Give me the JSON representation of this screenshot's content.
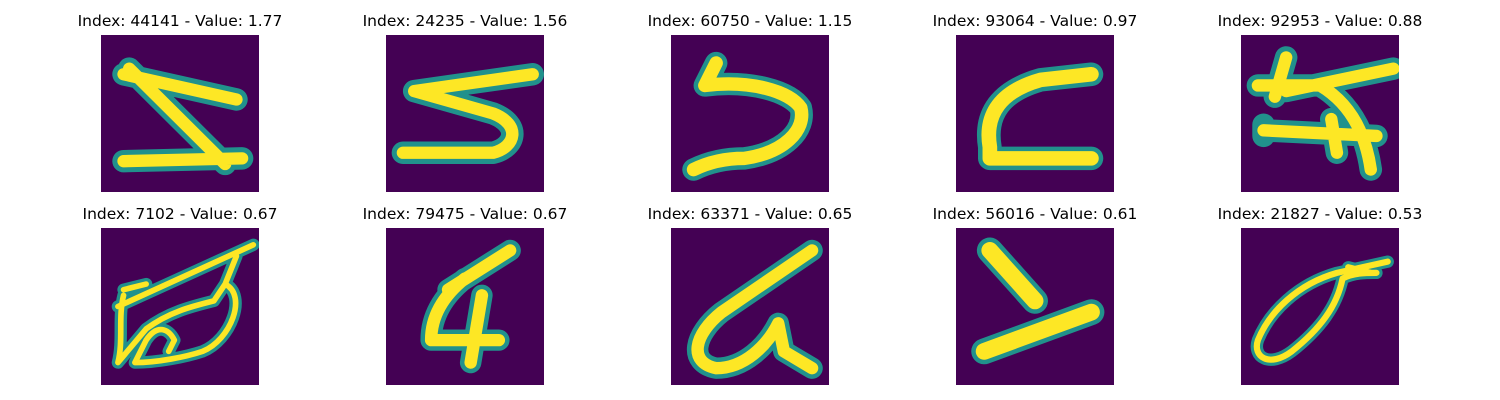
{
  "colors": {
    "background": "#440154",
    "mid": "#21918c",
    "high": "#fde725"
  },
  "panels": [
    {
      "index": "44141",
      "value": "1.77",
      "title": "Index: 44141 - Value: 1.77"
    },
    {
      "index": "24235",
      "value": "1.56",
      "title": "Index: 24235 - Value: 1.56"
    },
    {
      "index": "60750",
      "value": "1.15",
      "title": "Index: 60750 - Value: 1.15"
    },
    {
      "index": "93064",
      "value": "0.97",
      "title": "Index: 93064 - Value: 0.97"
    },
    {
      "index": "92953",
      "value": "0.88",
      "title": "Index: 92953 - Value: 0.88"
    },
    {
      "index": "7102",
      "value": "0.67",
      "title": "Index: 7102 - Value: 0.67"
    },
    {
      "index": "79475",
      "value": "0.67",
      "title": "Index: 79475 - Value: 0.67"
    },
    {
      "index": "63371",
      "value": "0.65",
      "title": "Index: 63371 - Value: 0.65"
    },
    {
      "index": "56016",
      "value": "0.61",
      "title": "Index: 56016 - Value: 0.61"
    },
    {
      "index": "21827",
      "value": "0.53",
      "title": "Index: 21827 - Value: 0.53"
    }
  ]
}
